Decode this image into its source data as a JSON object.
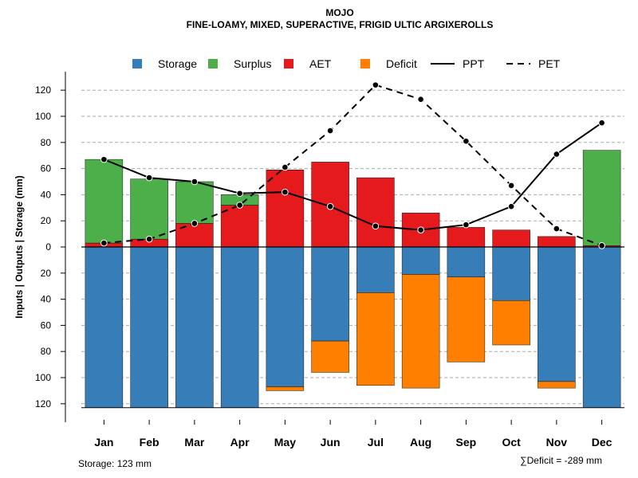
{
  "chart_data": {
    "type": "bar",
    "title": "MOJO",
    "subtitle": "FINE-LOAMY, MIXED, SUPERACTIVE, FRIGID ULTIC ARGIXEROLLS",
    "ylabel": "Inputs | Outputs | Storage    (mm)",
    "categories": [
      "Jan",
      "Feb",
      "Mar",
      "Apr",
      "May",
      "Jun",
      "Jul",
      "Aug",
      "Sep",
      "Oct",
      "Nov",
      "Dec"
    ],
    "ylim": [
      -123,
      135
    ],
    "yticks": [
      120,
      100,
      80,
      60,
      40,
      20,
      0,
      20,
      40,
      60,
      80,
      100,
      120
    ],
    "ytick_values": [
      120,
      100,
      80,
      60,
      40,
      20,
      0,
      -20,
      -40,
      -60,
      -80,
      -100,
      -120
    ],
    "grid": true,
    "legend": [
      {
        "label": "Storage",
        "kind": "box",
        "color": "#377EB8"
      },
      {
        "label": "Surplus",
        "kind": "box",
        "color": "#4DAF4A"
      },
      {
        "label": "AET",
        "kind": "box",
        "color": "#E41A1C"
      },
      {
        "label": "Deficit",
        "kind": "box",
        "color": "#FF7F00"
      },
      {
        "label": "PPT",
        "kind": "solid-line",
        "color": "#000000"
      },
      {
        "label": "PET",
        "kind": "dashed-line",
        "color": "#000000"
      }
    ],
    "series": [
      {
        "name": "AET",
        "color": "#E41A1C",
        "values": [
          3,
          6,
          18,
          32,
          59,
          65,
          53,
          26,
          15,
          13,
          8,
          1
        ]
      },
      {
        "name": "Surplus",
        "color": "#4DAF4A",
        "values": [
          64,
          46,
          32,
          8,
          0,
          0,
          0,
          0,
          0,
          0,
          0,
          73
        ]
      },
      {
        "name": "Storage",
        "color": "#377EB8",
        "values": [
          123,
          123,
          123,
          123,
          107,
          72,
          35,
          21,
          23,
          41,
          103,
          123
        ]
      },
      {
        "name": "Deficit",
        "color": "#FF7F00",
        "values": [
          0,
          0,
          0,
          0,
          3,
          24,
          71,
          87,
          65,
          34,
          5,
          0
        ]
      },
      {
        "name": "PPT",
        "color": "#000000",
        "line": "solid",
        "values": [
          67,
          53,
          50,
          41,
          42,
          31,
          16,
          13,
          17,
          31,
          71,
          95
        ]
      },
      {
        "name": "PET",
        "color": "#000000",
        "line": "dashed",
        "values": [
          3,
          6,
          18,
          32,
          61,
          89,
          124,
          113,
          81,
          47,
          14,
          1
        ]
      }
    ],
    "storage_note": "Storage: 123 mm",
    "deficit_note": "∑Deficit = -289 mm"
  }
}
